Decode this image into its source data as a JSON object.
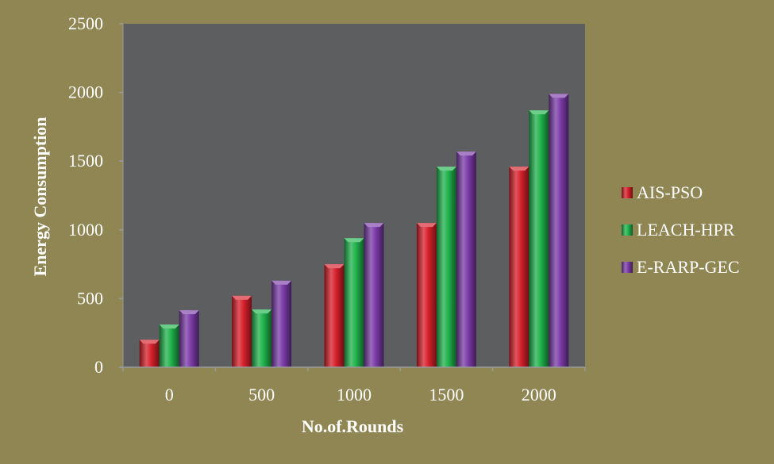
{
  "chart_data": {
    "type": "bar",
    "categories": [
      "0",
      "500",
      "1000",
      "1500",
      "2000"
    ],
    "series": [
      {
        "name": "AIS-PSO",
        "values": [
          200,
          520,
          750,
          1050,
          1460
        ],
        "color": "#d61f2a"
      },
      {
        "name": "LEACH-HPR",
        "values": [
          310,
          420,
          940,
          1460,
          1870
        ],
        "color": "#1fb24b"
      },
      {
        "name": "E-RARP-GEC",
        "values": [
          415,
          630,
          1050,
          1570,
          1990
        ],
        "color": "#7a3aa6"
      }
    ],
    "xlabel": "No.of.Rounds",
    "ylabel": "Energy Consumption",
    "ylim": [
      0,
      2500
    ],
    "yticks": [
      0,
      500,
      1000,
      1500,
      2000,
      2500
    ],
    "grid": false,
    "legend_position": "right",
    "plot_background": "#5d5e60",
    "page_background": "#8f8654"
  }
}
